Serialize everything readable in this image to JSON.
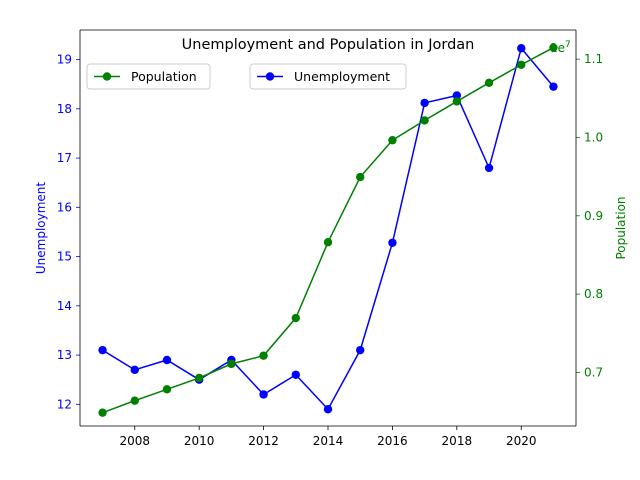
{
  "chart_data": {
    "type": "line",
    "title": "Unemployment and Population in Jordan",
    "x": [
      2007,
      2008,
      2009,
      2010,
      2011,
      2012,
      2013,
      2014,
      2015,
      2016,
      2017,
      2018,
      2019,
      2020,
      2021
    ],
    "xticks": [
      "2008",
      "2010",
      "2012",
      "2014",
      "2016",
      "2018",
      "2020"
    ],
    "xlim": [
      2006.3,
      2021.7
    ],
    "left_axis": {
      "label": "Unemployment",
      "color": "#0000ff",
      "ylim": [
        11.56,
        19.6
      ],
      "ticks": [
        "12",
        "13",
        "14",
        "15",
        "16",
        "17",
        "18",
        "19"
      ]
    },
    "right_axis": {
      "label": "Population",
      "color": "#008000",
      "offset_text": "1e7",
      "ylim": [
        0.6317,
        1.1372
      ],
      "ticks": [
        "0.7",
        "0.8",
        "0.9",
        "1.0",
        "1.1"
      ]
    },
    "series": [
      {
        "name": "Unemployment",
        "axis": "left",
        "color": "#0000ff",
        "values": [
          13.1,
          12.7,
          12.9,
          12.5,
          12.9,
          12.2,
          12.6,
          11.9,
          13.1,
          15.28,
          18.12,
          18.27,
          16.8,
          19.23,
          18.45
        ]
      },
      {
        "name": "Population",
        "axis": "right",
        "color": "#008000",
        "values": [
          0.6487,
          0.664,
          0.6785,
          0.693,
          0.711,
          0.7215,
          0.7695,
          0.8663,
          0.9495,
          0.9965,
          1.0218,
          1.046,
          1.0698,
          1.0928,
          1.1148
        ]
      }
    ],
    "legends": [
      {
        "placement": "upper-left",
        "label": "Population",
        "color": "#008000"
      },
      {
        "placement": "upper-center",
        "label": "Unemployment",
        "color": "#0000ff"
      }
    ],
    "grid": false
  }
}
